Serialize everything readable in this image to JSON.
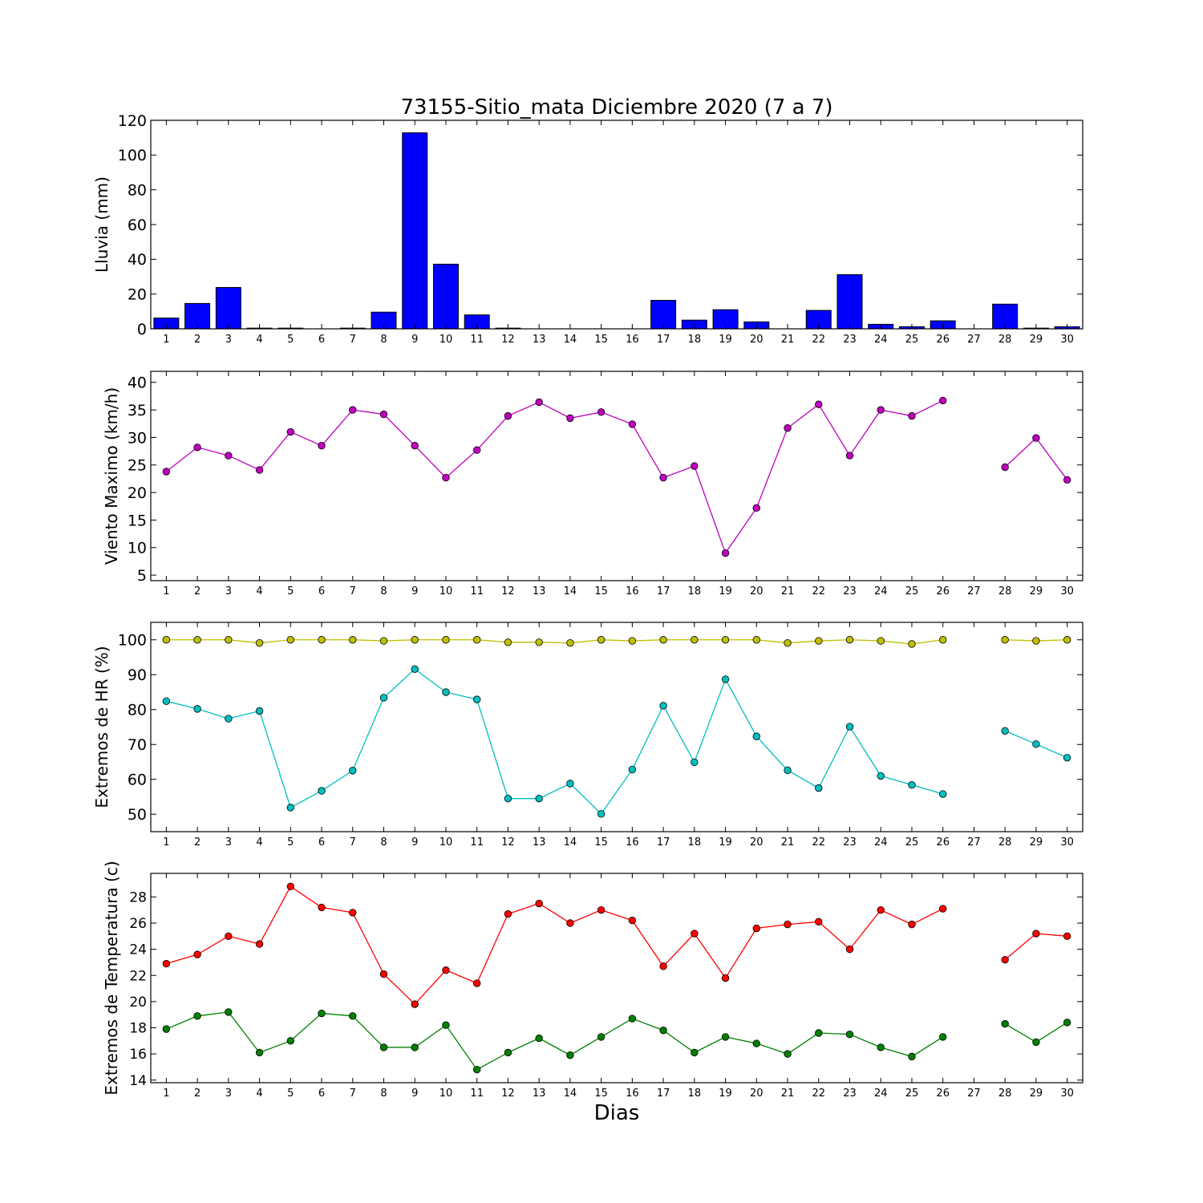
{
  "title": "73155-Sitio_mata Diciembre 2020  (7 a 7)",
  "xlabel": "Dias",
  "colors": {
    "rain": "#0000ff",
    "wind": "#bf00bf",
    "hr_max": "#bfbf00",
    "hr_min": "#00bfbf",
    "temp_max": "#ff0000",
    "temp_min": "#008000"
  },
  "chart_data": [
    {
      "type": "bar",
      "ylabel": "Lluvia (mm)",
      "ylim": [
        0,
        120
      ],
      "yticks": [
        0,
        20,
        40,
        60,
        80,
        100,
        120
      ],
      "categories": [
        1,
        2,
        3,
        4,
        5,
        6,
        7,
        8,
        9,
        10,
        11,
        12,
        13,
        14,
        15,
        16,
        17,
        18,
        19,
        20,
        21,
        22,
        23,
        24,
        25,
        26,
        27,
        28,
        29,
        30
      ],
      "series": [
        {
          "values": [
            6.2,
            14.6,
            23.8,
            0.4,
            0.4,
            0,
            0.4,
            9.6,
            112.8,
            37.2,
            8.0,
            0.4,
            0,
            0,
            0,
            0,
            16.4,
            5.0,
            11.0,
            4.0,
            0,
            10.6,
            31.2,
            2.6,
            1.2,
            4.6,
            null,
            14.2,
            0.4,
            1.2
          ]
        }
      ],
      "grid": false
    },
    {
      "type": "line",
      "ylabel": "Viento Maximo (km/h)",
      "ylim": [
        4,
        42
      ],
      "yticks": [
        5,
        10,
        15,
        20,
        25,
        30,
        35,
        40
      ],
      "categories": [
        1,
        2,
        3,
        4,
        5,
        6,
        7,
        8,
        9,
        10,
        11,
        12,
        13,
        14,
        15,
        16,
        17,
        18,
        19,
        20,
        21,
        22,
        23,
        24,
        25,
        26,
        27,
        28,
        29,
        30
      ],
      "series": [
        {
          "values": [
            23.8,
            28.2,
            26.7,
            24.1,
            31.0,
            28.5,
            35.0,
            34.2,
            28.5,
            22.7,
            27.7,
            33.9,
            36.4,
            33.5,
            34.6,
            32.4,
            22.7,
            24.8,
            9.0,
            17.2,
            31.7,
            36.0,
            26.7,
            35.0,
            33.9,
            36.7,
            null,
            24.6,
            29.9,
            22.3
          ]
        }
      ],
      "grid": false
    },
    {
      "type": "line",
      "ylabel": "Extremos de HR (%)",
      "ylim": [
        45,
        105
      ],
      "yticks": [
        50,
        60,
        70,
        80,
        90,
        100
      ],
      "categories": [
        1,
        2,
        3,
        4,
        5,
        6,
        7,
        8,
        9,
        10,
        11,
        12,
        13,
        14,
        15,
        16,
        17,
        18,
        19,
        20,
        21,
        22,
        23,
        24,
        25,
        26,
        27,
        28,
        29,
        30
      ],
      "series": [
        {
          "values": [
            100,
            100,
            100,
            99.1,
            100,
            100,
            100,
            99.7,
            100,
            100,
            100,
            99.3,
            99.3,
            99.1,
            100,
            99.7,
            100,
            100,
            100,
            100,
            99.1,
            99.7,
            100,
            99.7,
            98.8,
            100,
            null,
            100,
            99.7,
            100
          ]
        },
        {
          "values": [
            82.4,
            80.2,
            77.4,
            79.6,
            51.9,
            56.7,
            62.5,
            83.4,
            91.6,
            85.0,
            82.9,
            54.5,
            54.5,
            58.8,
            50.1,
            62.8,
            81.1,
            64.9,
            88.7,
            72.3,
            62.6,
            57.5,
            75.1,
            61.0,
            58.4,
            55.8,
            null,
            73.9,
            70.1,
            66.2
          ]
        }
      ],
      "grid": false
    },
    {
      "type": "line",
      "ylabel": "Extremos de Temperatura (c)",
      "ylim": [
        13.8,
        29.8
      ],
      "yticks": [
        14,
        16,
        18,
        20,
        22,
        24,
        26,
        28
      ],
      "categories": [
        1,
        2,
        3,
        4,
        5,
        6,
        7,
        8,
        9,
        10,
        11,
        12,
        13,
        14,
        15,
        16,
        17,
        18,
        19,
        20,
        21,
        22,
        23,
        24,
        25,
        26,
        27,
        28,
        29,
        30
      ],
      "series": [
        {
          "values": [
            22.9,
            23.6,
            25.0,
            24.4,
            28.8,
            27.2,
            26.8,
            22.1,
            19.8,
            22.4,
            21.4,
            26.7,
            27.5,
            26.0,
            27.0,
            26.2,
            22.7,
            25.2,
            21.8,
            25.6,
            25.9,
            26.1,
            24.0,
            27.0,
            25.9,
            27.1,
            null,
            23.2,
            25.2,
            25.0
          ]
        },
        {
          "values": [
            17.9,
            18.9,
            19.2,
            16.1,
            17.0,
            19.1,
            18.9,
            16.5,
            16.5,
            18.2,
            14.8,
            16.1,
            17.2,
            15.9,
            17.3,
            18.7,
            17.8,
            16.1,
            17.3,
            16.8,
            16.0,
            17.6,
            17.5,
            16.5,
            15.8,
            17.3,
            null,
            18.3,
            16.9,
            18.4
          ]
        }
      ],
      "grid": false
    }
  ]
}
